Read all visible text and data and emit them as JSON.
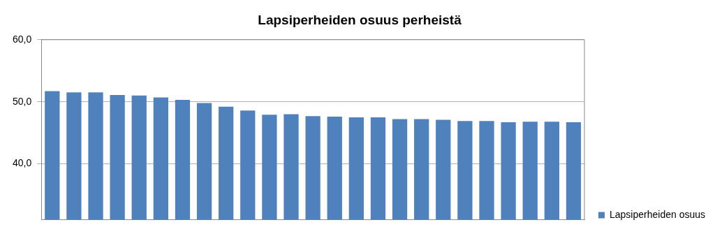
{
  "chart_data": {
    "type": "bar",
    "title": "Lapsiperheiden osuus perheistä",
    "categories": [
      null,
      null,
      null,
      null,
      null,
      null,
      null,
      null,
      null,
      null,
      null,
      null,
      null,
      null,
      null,
      null,
      null,
      null,
      null,
      null,
      null,
      null,
      null,
      null,
      null
    ],
    "series": [
      {
        "name": "Lapsiperheiden osuus",
        "color": "#4f81bd",
        "values": [
          51.7,
          51.5,
          51.5,
          51.1,
          51.0,
          50.7,
          50.3,
          49.8,
          49.2,
          48.6,
          47.9,
          48.0,
          47.7,
          47.6,
          47.5,
          47.5,
          47.2,
          47.2,
          47.1,
          46.9,
          46.9,
          46.7,
          46.8,
          46.8,
          46.7
        ]
      }
    ],
    "ylim": [
      31,
      60
    ],
    "yticks": [
      {
        "value": 40,
        "label": "40,0"
      },
      {
        "value": 50,
        "label": "50,0"
      },
      {
        "value": 60,
        "label": "60,0"
      }
    ],
    "grid": "y",
    "legend": "right"
  }
}
